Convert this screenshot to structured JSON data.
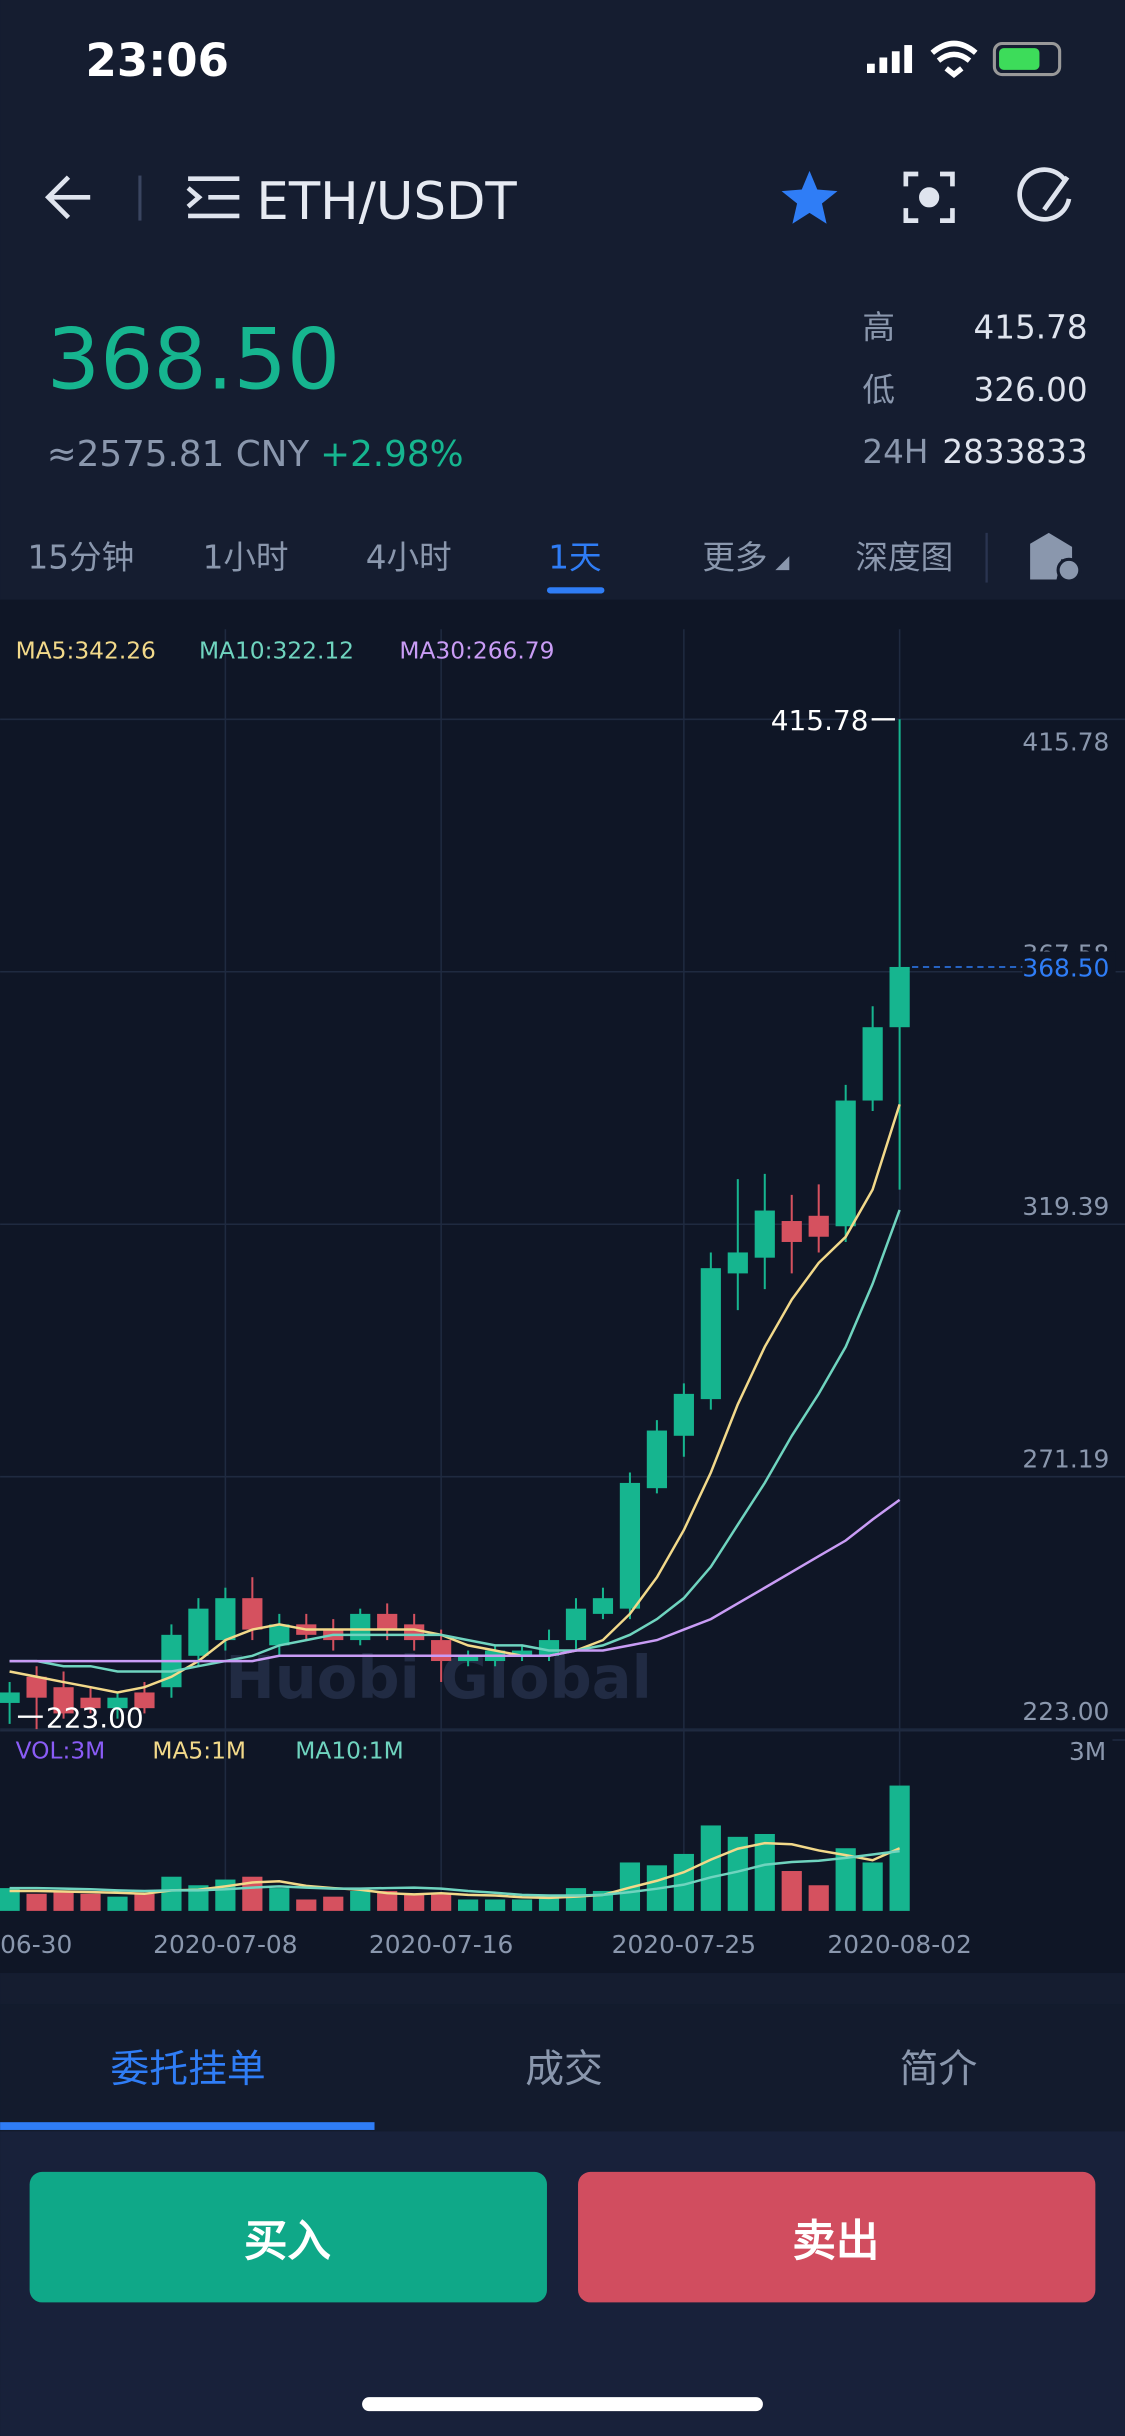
{
  "status": {
    "time": "23:06"
  },
  "header": {
    "pair": "ETH/USDT"
  },
  "ticker": {
    "price": "368.50",
    "cny": "≈2575.81 CNY",
    "change": "+2.98%",
    "stats": [
      {
        "label": "高",
        "value": "415.78"
      },
      {
        "label": "低",
        "value": "326.00"
      },
      {
        "label": "24H",
        "value": "2833833"
      }
    ]
  },
  "tabs": [
    "15分钟",
    "1小时",
    "4小时",
    "1天",
    "更多",
    "深度图"
  ],
  "watermark": "Huobi Global",
  "chart_data": {
    "type": "candlestick",
    "categories": [
      "06-30",
      null,
      null,
      null,
      null,
      null,
      null,
      null,
      "2020-07-08",
      null,
      null,
      null,
      null,
      null,
      null,
      null,
      "2020-07-16",
      null,
      null,
      null,
      null,
      null,
      null,
      null,
      null,
      "2020-07-25",
      null,
      null,
      null,
      null,
      null,
      null,
      null,
      "2020-08-02"
    ],
    "open": [
      228,
      233,
      231,
      229,
      227,
      230,
      231,
      237,
      240,
      248,
      239,
      243,
      242,
      240,
      245,
      243,
      240,
      236,
      236,
      237,
      237,
      240,
      245,
      246,
      269,
      279,
      286,
      310,
      313,
      320,
      321,
      319,
      343,
      357
    ],
    "high": [
      232,
      235,
      234,
      231,
      230,
      232,
      243,
      248,
      250,
      252,
      245,
      245,
      244,
      246,
      247,
      245,
      242,
      238,
      239,
      239,
      242,
      248,
      250,
      272,
      282,
      289,
      314,
      328,
      329,
      325,
      327,
      346,
      361,
      415.78
    ],
    "low": [
      224,
      223,
      225,
      226,
      225,
      226,
      229,
      235,
      238,
      240,
      237,
      240,
      238,
      239,
      240,
      238,
      232,
      235,
      235,
      236,
      236,
      238,
      244,
      244,
      268,
      275,
      284,
      303,
      307,
      310,
      314,
      316,
      341,
      326
    ],
    "close": [
      230,
      229,
      226,
      227,
      229,
      227,
      241,
      246,
      248,
      242,
      243,
      241,
      240,
      245,
      242,
      240,
      236,
      237,
      238,
      238,
      240,
      246,
      248,
      270,
      280,
      287,
      311,
      314,
      322,
      316,
      317,
      343,
      357,
      368.5
    ],
    "up_color": "#16b58f",
    "down_color": "#d5515f",
    "ylim": [
      223,
      415.78
    ],
    "yticks": [
      415.78,
      367.58,
      319.39,
      271.19,
      {
        "value": 223,
        "label": "223.00"
      }
    ],
    "grid": true,
    "series": [
      {
        "name": "MA5:342.26",
        "color": "#f2d98a",
        "values": [
          234,
          233,
          232,
          231,
          230,
          231,
          233,
          236,
          240,
          242,
          243,
          242,
          242,
          242,
          242,
          242,
          241,
          239,
          238,
          237,
          237,
          238,
          240,
          245,
          252,
          261,
          272,
          285,
          296,
          305,
          312,
          317,
          326,
          342.26
        ]
      },
      {
        "name": "MA10:322.12",
        "color": "#6fd4bf",
        "values": [
          236,
          236,
          235,
          235,
          234,
          234,
          234,
          235,
          236,
          237,
          239,
          240,
          241,
          241,
          241,
          241,
          241,
          240,
          239,
          239,
          238,
          238,
          239,
          241,
          244,
          248,
          254,
          262,
          270,
          279,
          287,
          296,
          308,
          322.12
        ]
      },
      {
        "name": "MA30:266.79",
        "color": "#c99cf5",
        "values": [
          236,
          236,
          236,
          236,
          236,
          236,
          236,
          236,
          236,
          236,
          237,
          237,
          237,
          237,
          237,
          237,
          237,
          237,
          237,
          237,
          237,
          238,
          238,
          239,
          240,
          242,
          244,
          247,
          250,
          253,
          256,
          259,
          263,
          266.79
        ]
      }
    ],
    "last_price": {
      "value": 368.5,
      "label": "368.50",
      "color": "#2f7df6"
    },
    "high_mark": {
      "value": 415.78,
      "label": "415.78"
    },
    "low_mark": {
      "value": 223,
      "label": "223.00"
    },
    "volume": {
      "label": "VOL:3M",
      "label_color": "#8a5cf6",
      "values": [
        0.4,
        0.3,
        0.35,
        0.3,
        0.25,
        0.3,
        0.6,
        0.45,
        0.55,
        0.6,
        0.4,
        0.2,
        0.25,
        0.35,
        0.35,
        0.3,
        0.3,
        0.2,
        0.2,
        0.2,
        0.25,
        0.4,
        0.35,
        0.85,
        0.8,
        1.0,
        1.5,
        1.3,
        1.35,
        0.7,
        0.45,
        1.1,
        0.85,
        2.2
      ],
      "ylim": [
        0,
        3
      ],
      "yticks": [
        {
          "value": 3,
          "label": "3M"
        }
      ],
      "series": [
        {
          "name": "MA5:1M",
          "color": "#f2d98a",
          "values": [
            0.35,
            0.35,
            0.34,
            0.33,
            0.32,
            0.3,
            0.36,
            0.37,
            0.43,
            0.5,
            0.52,
            0.44,
            0.4,
            0.37,
            0.31,
            0.29,
            0.31,
            0.28,
            0.27,
            0.24,
            0.23,
            0.25,
            0.28,
            0.41,
            0.53,
            0.68,
            0.9,
            1.09,
            1.19,
            1.17,
            1.06,
            0.98,
            0.89,
            1.1
          ]
        },
        {
          "name": "MA10:1M",
          "color": "#6fd4bf",
          "values": [
            0.4,
            0.4,
            0.39,
            0.38,
            0.36,
            0.35,
            0.36,
            0.36,
            0.38,
            0.41,
            0.43,
            0.41,
            0.39,
            0.39,
            0.4,
            0.41,
            0.39,
            0.35,
            0.32,
            0.28,
            0.27,
            0.27,
            0.28,
            0.33,
            0.39,
            0.46,
            0.59,
            0.69,
            0.81,
            0.86,
            0.88,
            0.93,
            0.99,
            1.05
          ]
        }
      ]
    }
  },
  "bottom_tabs": [
    "委托挂单",
    "成交",
    "简介"
  ],
  "buttons": {
    "buy": "买入",
    "sell": "卖出"
  }
}
